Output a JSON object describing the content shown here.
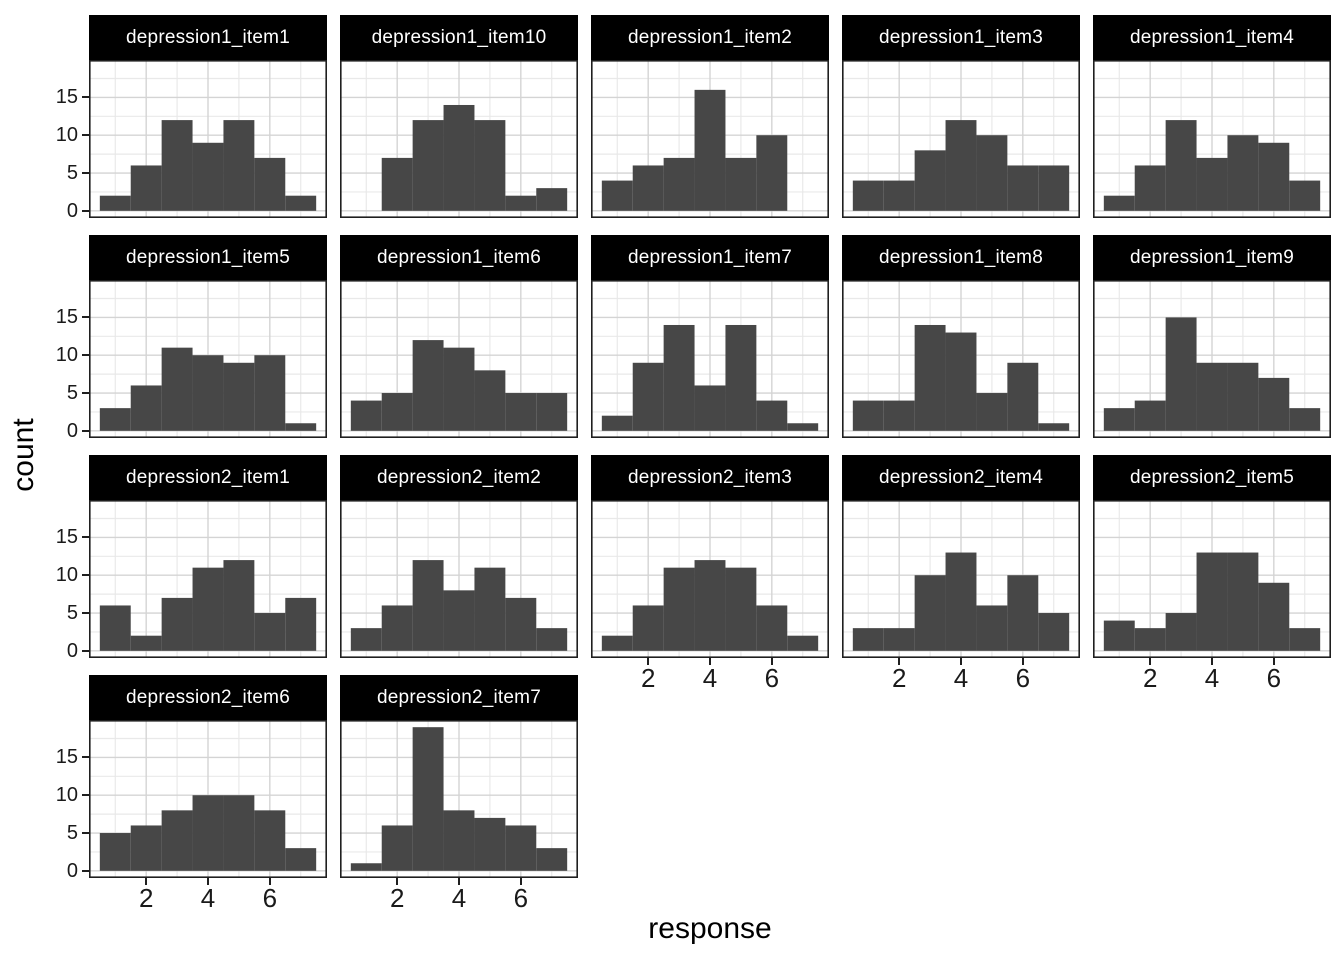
{
  "figure": {
    "colors": {
      "bar_fill": "#474747",
      "strip_bg": "#000000",
      "strip_text": "#ffffff",
      "panel_bg": "#ffffff",
      "panel_border": "#1f1f1f",
      "grid_major": "#d4d4d4",
      "grid_minor": "#e9e9e9",
      "axis_text": "#1a1a1a",
      "tick": "#1f1f1f"
    }
  },
  "chart_data": {
    "type": "bar",
    "subtype": "faceted-histogram",
    "xlabel": "response",
    "ylabel": "count",
    "x_values": [
      1,
      2,
      3,
      4,
      5,
      6,
      7
    ],
    "x_ticks": [
      2,
      4,
      6
    ],
    "y_ticks": [
      0,
      5,
      10,
      15
    ],
    "y_minor": [
      2.5,
      7.5,
      12.5,
      17.5
    ],
    "x_minor": [
      1,
      3,
      5,
      7
    ],
    "xlim": [
      0.15,
      7.85
    ],
    "ylim": [
      -0.95,
      19.95
    ],
    "grid": true,
    "legend": "none",
    "ncol": 5,
    "facets": [
      {
        "label": "depression1_item1",
        "counts": [
          2,
          6,
          12,
          9,
          12,
          7,
          2
        ]
      },
      {
        "label": "depression1_item10",
        "counts": [
          0,
          7,
          12,
          14,
          12,
          2,
          3
        ]
      },
      {
        "label": "depression1_item2",
        "counts": [
          4,
          6,
          7,
          16,
          7,
          10,
          0
        ]
      },
      {
        "label": "depression1_item3",
        "counts": [
          4,
          4,
          8,
          12,
          10,
          6,
          6
        ]
      },
      {
        "label": "depression1_item4",
        "counts": [
          2,
          6,
          12,
          7,
          10,
          9,
          4
        ]
      },
      {
        "label": "depression1_item5",
        "counts": [
          3,
          6,
          11,
          10,
          9,
          10,
          1
        ]
      },
      {
        "label": "depression1_item6",
        "counts": [
          4,
          5,
          12,
          11,
          8,
          5,
          5
        ]
      },
      {
        "label": "depression1_item7",
        "counts": [
          2,
          9,
          14,
          6,
          14,
          4,
          1
        ]
      },
      {
        "label": "depression1_item8",
        "counts": [
          4,
          4,
          14,
          13,
          5,
          9,
          1
        ]
      },
      {
        "label": "depression1_item9",
        "counts": [
          3,
          4,
          15,
          9,
          9,
          7,
          3
        ]
      },
      {
        "label": "depression2_item1",
        "counts": [
          6,
          2,
          7,
          11,
          12,
          5,
          7
        ]
      },
      {
        "label": "depression2_item2",
        "counts": [
          3,
          6,
          12,
          8,
          11,
          7,
          3
        ]
      },
      {
        "label": "depression2_item3",
        "counts": [
          2,
          6,
          11,
          12,
          11,
          6,
          2
        ]
      },
      {
        "label": "depression2_item4",
        "counts": [
          3,
          3,
          10,
          13,
          6,
          10,
          5
        ]
      },
      {
        "label": "depression2_item5",
        "counts": [
          4,
          3,
          5,
          13,
          13,
          9,
          3
        ]
      },
      {
        "label": "depression2_item6",
        "counts": [
          5,
          6,
          8,
          10,
          10,
          8,
          3
        ]
      },
      {
        "label": "depression2_item7",
        "counts": [
          1,
          6,
          19,
          8,
          7,
          6,
          3
        ]
      }
    ]
  }
}
